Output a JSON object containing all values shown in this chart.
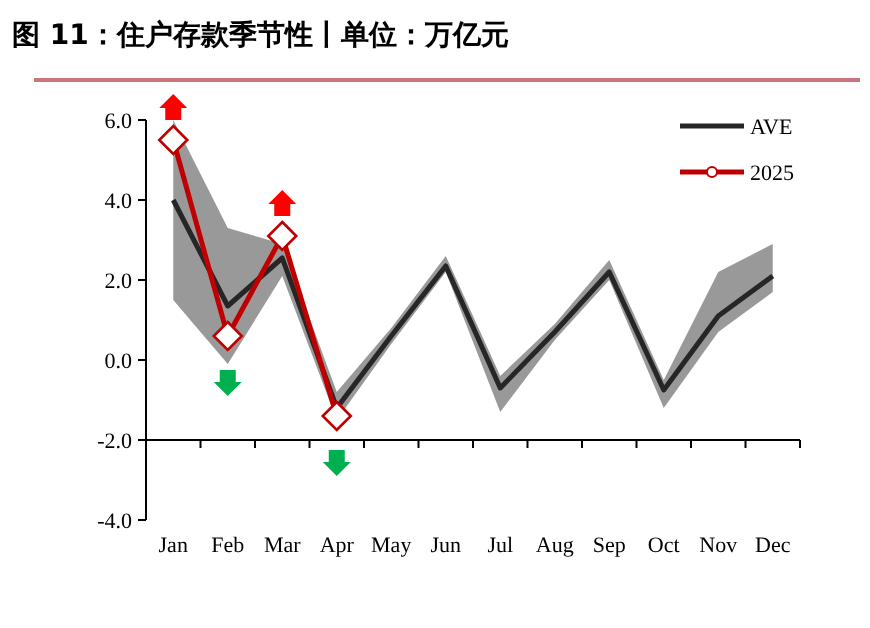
{
  "chart_data": {
    "type": "line",
    "title": "图 11：住户存款季节性丨单位：万亿元",
    "categories": [
      "Jan",
      "Feb",
      "Mar",
      "Apr",
      "May",
      "Jun",
      "Jul",
      "Aug",
      "Sep",
      "Oct",
      "Nov",
      "Dec"
    ],
    "series": [
      {
        "name": "AVE",
        "color": "#262626",
        "marker": "none",
        "values": [
          4.0,
          1.35,
          2.55,
          -1.2,
          0.6,
          2.35,
          -0.7,
          0.7,
          2.2,
          -0.75,
          1.1,
          2.1
        ],
        "lower": [
          1.5,
          -0.1,
          2.1,
          -1.5,
          0.4,
          2.2,
          -1.3,
          0.5,
          2.0,
          -1.2,
          0.7,
          1.7
        ],
        "upper": [
          6.0,
          3.3,
          2.9,
          -0.8,
          0.8,
          2.6,
          -0.4,
          0.9,
          2.5,
          -0.5,
          2.2,
          2.9
        ]
      },
      {
        "name": "2025",
        "color": "#c00000",
        "marker": "diamond",
        "values": [
          5.5,
          0.6,
          3.1,
          -1.4,
          null,
          null,
          null,
          null,
          null,
          null,
          null,
          null
        ]
      }
    ],
    "ylim": [
      -4,
      6
    ],
    "yticks": [
      {
        "value": -4,
        "label": "-4.0"
      },
      {
        "value": -2,
        "label": "-2.0"
      },
      {
        "value": 0,
        "label": "0.0"
      },
      {
        "value": 2,
        "label": "2.0"
      },
      {
        "value": 4,
        "label": "4.0"
      },
      {
        "value": 6,
        "label": "6.0"
      }
    ],
    "ref_lines": [
      {
        "axis": "y",
        "value": -2,
        "color": "#000000"
      }
    ],
    "grid": false,
    "legend": "top right",
    "line_style": "solid"
  }
}
